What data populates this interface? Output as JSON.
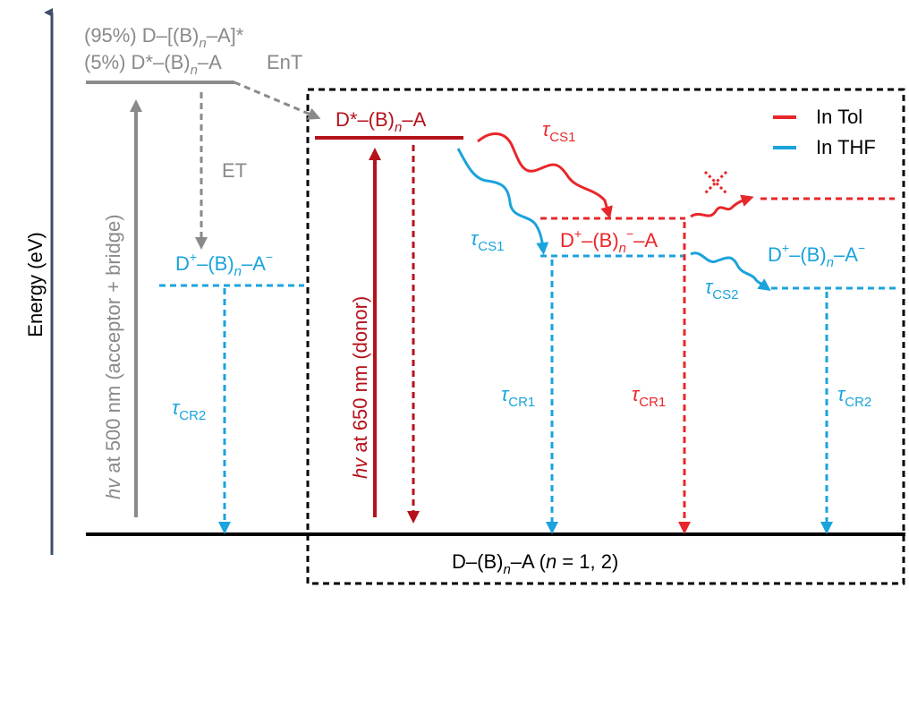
{
  "axis": {
    "label": "Energy (eV)",
    "color": "#3d4f6b"
  },
  "colors": {
    "gray": "#8a8a8a",
    "red_light": "#e8272a",
    "red_dark": "#b5121b",
    "cyan": "#1aa3dc",
    "black": "#000000"
  },
  "states": {
    "initial_line1_prefix": "(95%) D–[(B)",
    "initial_line1_sub": "n",
    "initial_line1_suffix": "–A]*",
    "initial_line2_prefix": "(5%) D*–(B)",
    "initial_line2_sub": "n",
    "initial_line2_suffix": "–A",
    "donor_excited_prefix": "D*–(B)",
    "donor_excited_sub": "n",
    "donor_excited_suffix": "–A",
    "cs_left_d": "D",
    "cs_left_sup": "+",
    "cs_left_mid": "–(B)",
    "cs_left_sub": "n",
    "cs_left_a": "–A",
    "cs_left_asup": "−",
    "cs_tol_d": "D",
    "cs_tol_sup": "+",
    "cs_tol_mid": "–(B)",
    "cs_tol_sub": "n",
    "cs_tol_bsup": "−",
    "cs_tol_a": "–A",
    "cs_right_d": "D",
    "cs_right_sup": "+",
    "cs_right_mid": "–(B)",
    "cs_right_sub": "n",
    "cs_right_a": "–A",
    "cs_right_asup": "−",
    "ground_prefix": "D–(B)",
    "ground_sub": "n",
    "ground_mid": "–A (",
    "ground_n": "n",
    "ground_suffix": " = 1, 2)"
  },
  "processes": {
    "ent": "EnT",
    "et": "ET",
    "tau": "τ",
    "cs1": "CS1",
    "cs2": "CS2",
    "cr1": "CR1",
    "cr2": "CR2"
  },
  "excitation": {
    "acceptor_hv": "hv",
    "acceptor_text": " at 500 nm (acceptor + bridge)",
    "donor_hv": "hv",
    "donor_text": " at 650 nm (donor)"
  },
  "legend": {
    "items": [
      {
        "label": "In Tol",
        "color": "#e8272a"
      },
      {
        "label": "In THF",
        "color": "#1aa3dc"
      }
    ]
  }
}
